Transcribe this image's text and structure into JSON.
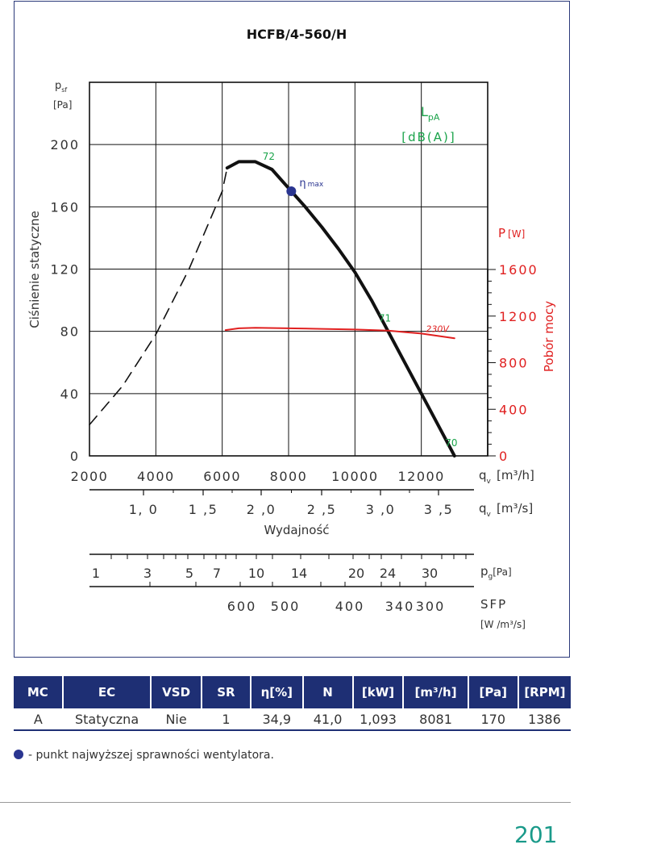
{
  "chart_data": {
    "type": "line",
    "title": "HCFB/4-560/H",
    "ylabel": "Ciśnienie statyczne",
    "ylabel_symbol": "p",
    "ylabel_sub": "sf",
    "yunit": "[Pa]",
    "ylim": [
      0,
      240
    ],
    "y_ticks": [
      "0",
      "40",
      "80",
      "120",
      "160",
      "200"
    ],
    "xlabel": "Wydajność",
    "x_label_symbol": "q",
    "x_label_sub": "v",
    "x_unit_main": "[m³/h]",
    "x_unit_secondary": "[m³/s]",
    "xlim": [
      2000,
      14000
    ],
    "x_ticks": [
      "2000",
      "4000",
      "6000",
      "8000",
      "10000",
      "12000"
    ],
    "x2_ticks": [
      "1, 0",
      "1 ,5",
      "2 ,0",
      "2 ,5",
      "3 ,0",
      "3 ,5"
    ],
    "p_axis_title": "P",
    "p_axis_unit": "[W]",
    "p_axis_label": "Pobór mocy",
    "p_ticks": [
      "0",
      "400",
      "800",
      "1200",
      "1600"
    ],
    "grid": true,
    "series": [
      {
        "dash": true,
        "x": [
          2000,
          3000,
          4000,
          5000,
          6000,
          6150
        ],
        "y": [
          20,
          45,
          78,
          120,
          170,
          185
        ]
      },
      {
        "x": [
          6150,
          6500,
          7000,
          7500,
          8000,
          8500,
          9000,
          9500,
          10000,
          10500,
          11000,
          11500,
          12000,
          12500,
          13000
        ],
        "y": [
          185,
          189,
          189,
          184,
          172,
          160,
          147,
          133,
          118,
          100,
          80,
          60,
          40,
          20,
          0
        ]
      },
      {
        "name": "230V",
        "x": [
          6100,
          6500,
          7000,
          8000,
          9000,
          10000,
          11000,
          12000,
          13000
        ],
        "y": [
          1080,
          1095,
          1100,
          1095,
          1090,
          1085,
          1075,
          1050,
          1010
        ]
      }
    ],
    "lpa_label": "L",
    "lpa_sub": "pA",
    "lpa_unit": "[dB(A)]",
    "lpa_points": [
      {
        "label": "72",
        "x": 7500,
        "y": 184
      },
      {
        "label": "71",
        "x": 11000,
        "y": 80
      },
      {
        "label": "70",
        "x": 13000,
        "y": 0
      }
    ],
    "eta_max": {
      "x": 8081,
      "y": 170,
      "label": "η",
      "sub": "max"
    },
    "pg_title": "p",
    "pg_sub": "g",
    "pg_unit": "[Pa]",
    "pg_ticks": [
      "1",
      "3",
      "5",
      "7",
      "10",
      "14",
      "20",
      "24",
      "30"
    ],
    "sfp_title": "SFP",
    "sfp_unit": "[W /m³/s]",
    "sfp_ticks": [
      "600",
      "500",
      "400",
      "340",
      "300"
    ]
  },
  "table": {
    "headers": [
      "MC",
      "EC",
      "VSD",
      "SR",
      "η[%]",
      "N",
      "[kW]",
      "[m³/h]",
      "[Pa]",
      "[RPM]"
    ],
    "row": [
      "A",
      "Statyczna",
      "Nie",
      "1",
      "34,9",
      "41,0",
      "1,093",
      "8081",
      "170",
      "1386"
    ]
  },
  "legend_text": "- punkt najwyższej sprawności wentylatora.",
  "page_number": "201",
  "colors": {
    "dark_blue": "#1e2f74",
    "red": "#e02020",
    "green": "#1aa34a",
    "curve": "#111111",
    "point": "#2a3590"
  }
}
